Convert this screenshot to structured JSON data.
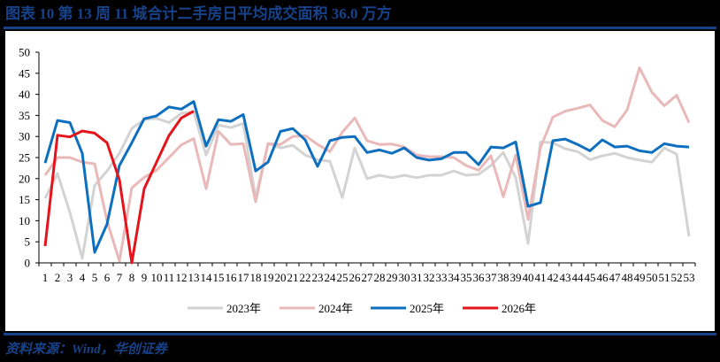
{
  "header": {
    "title": "图表 10   第 13 周 11 城合计二手房日平均成交面积 36.0 万方"
  },
  "footer": {
    "source": "资料来源：Wind，华创证券"
  },
  "colors": {
    "brand": "#17428a",
    "2023": "#d3d3d3",
    "2024": "#e9b9b9",
    "2025": "#0e6fbf",
    "2026": "#e3141b"
  },
  "chart_data": {
    "type": "line",
    "title": "第 13 周 11 城合计二手房日平均成交面积 36.0 万方",
    "xlabel": "",
    "ylabel": "",
    "ylim": [
      0,
      50
    ],
    "yticks": [
      0,
      5,
      10,
      15,
      20,
      25,
      30,
      35,
      40,
      45,
      50
    ],
    "grid": false,
    "legend_position": "bottom",
    "x": [
      1,
      2,
      3,
      4,
      5,
      6,
      7,
      8,
      9,
      10,
      11,
      12,
      13,
      14,
      15,
      16,
      17,
      18,
      19,
      20,
      21,
      22,
      23,
      24,
      25,
      26,
      27,
      28,
      29,
      30,
      31,
      32,
      33,
      34,
      35,
      36,
      37,
      38,
      39,
      40,
      41,
      42,
      43,
      44,
      45,
      46,
      47,
      48,
      49,
      50,
      51,
      52,
      53
    ],
    "series": [
      {
        "name": "2023年",
        "color": "#d3d3d3",
        "values": [
          15.3,
          21.2,
          12.0,
          1.1,
          18.4,
          21.8,
          26.0,
          31.9,
          34.0,
          34.3,
          33.3,
          35.5,
          35.8,
          25.6,
          32.7,
          32.1,
          33.1,
          15.5,
          28.3,
          27.3,
          27.9,
          25.6,
          24.5,
          24.1,
          15.5,
          27.3,
          20.0,
          20.8,
          20.2,
          20.8,
          20.2,
          20.8,
          20.8,
          21.8,
          20.8,
          21.0,
          23.1,
          26.2,
          20.3,
          4.6,
          28.7,
          28.5,
          27.1,
          26.4,
          24.5,
          25.4,
          26.0,
          25.0,
          24.4,
          23.9,
          27.3,
          25.8,
          6.3
        ]
      },
      {
        "name": "2024年",
        "color": "#e9b9b9",
        "values": [
          20.8,
          25.0,
          25.0,
          23.9,
          23.5,
          10.0,
          0.4,
          17.8,
          20.3,
          22.0,
          25.0,
          28.0,
          29.5,
          17.6,
          31.2,
          28.1,
          28.3,
          14.5,
          28.3,
          28.1,
          30.0,
          30.2,
          28.1,
          26.4,
          31.0,
          34.4,
          29.0,
          28.1,
          28.2,
          27.5,
          25.6,
          25.2,
          25.2,
          25.0,
          23.1,
          22.0,
          25.4,
          15.7,
          25.6,
          10.3,
          27.3,
          34.6,
          36.0,
          36.7,
          37.5,
          33.8,
          32.3,
          36.3,
          46.3,
          40.5,
          37.3,
          39.8,
          33.3
        ]
      },
      {
        "name": "2025年",
        "color": "#0e6fbf",
        "values": [
          23.7,
          33.8,
          33.3,
          26.0,
          2.5,
          9.2,
          23.1,
          28.5,
          34.2,
          34.9,
          37.0,
          36.5,
          38.3,
          27.7,
          34.0,
          33.6,
          35.2,
          21.8,
          23.9,
          31.2,
          31.9,
          29.2,
          22.9,
          29.0,
          29.8,
          30.0,
          26.2,
          26.8,
          26.0,
          27.3,
          25.0,
          24.4,
          24.7,
          26.2,
          26.2,
          23.3,
          27.5,
          27.3,
          28.7,
          13.4,
          14.3,
          29.0,
          29.4,
          28.1,
          26.6,
          29.2,
          27.5,
          27.7,
          26.6,
          26.2,
          28.3,
          27.7,
          27.5
        ]
      },
      {
        "name": "2026年",
        "color": "#e3141b",
        "values": [
          4.0,
          30.3,
          29.9,
          31.3,
          30.8,
          28.5,
          19.7,
          0.0,
          17.6,
          23.9,
          30.2,
          34.4,
          36.0
        ]
      }
    ]
  },
  "legend": {
    "items": [
      {
        "label": "2023年",
        "color": "#d3d3d3"
      },
      {
        "label": "2024年",
        "color": "#e9b9b9"
      },
      {
        "label": "2025年",
        "color": "#0e6fbf"
      },
      {
        "label": "2026年",
        "color": "#e3141b"
      }
    ]
  }
}
